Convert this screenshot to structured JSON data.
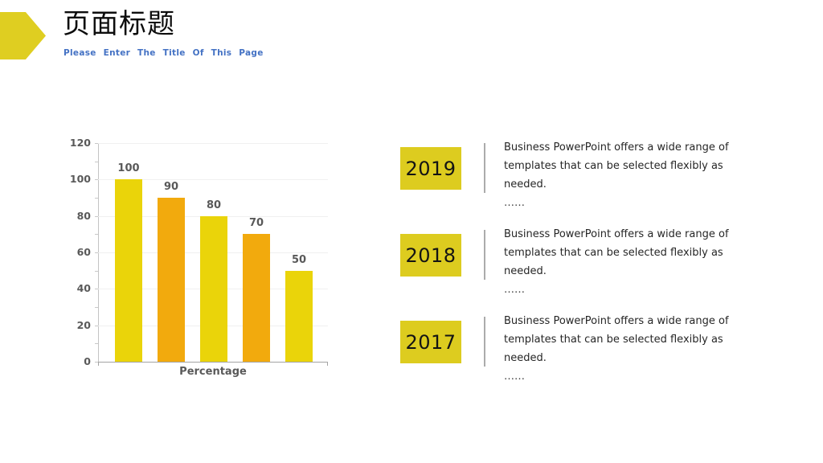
{
  "header": {
    "title": "页面标题",
    "subtitle": "Please Enter The Title Of This Page"
  },
  "colors": {
    "accent_yellow": "#ddcc1f",
    "bar_yellow": "#ead40a",
    "bar_orange": "#f2aa0d",
    "subtitle_blue": "#4472c4",
    "axis_text": "#595959",
    "gridline": "#f0f0f0"
  },
  "chart_data": {
    "type": "bar",
    "title": "",
    "categories": [
      "",
      "",
      "",
      "",
      ""
    ],
    "values": [
      100,
      90,
      80,
      70,
      50
    ],
    "data_labels": [
      "100",
      "90",
      "80",
      "70",
      "50"
    ],
    "bar_colors": [
      "#ead40a",
      "#f2aa0d",
      "#ead40a",
      "#f2aa0d",
      "#ead40a"
    ],
    "xlabel": "Percentage",
    "ylabel": "",
    "ylim": [
      0,
      120
    ],
    "yticks": [
      0,
      20,
      40,
      60,
      80,
      100,
      120
    ],
    "ytick_interval": 20,
    "minor_tick_interval": 10,
    "grid": "horizontal-major",
    "legend": "none"
  },
  "sections": [
    {
      "year": "2019",
      "lines": [
        "Business PowerPoint offers a wide range of",
        "templates that can be selected flexibly as",
        "needed."
      ],
      "ellipsis": "……"
    },
    {
      "year": "2018",
      "lines": [
        "Business PowerPoint offers a wide range of",
        "templates that can be selected flexibly as",
        "needed."
      ],
      "ellipsis": "……"
    },
    {
      "year": "2017",
      "lines": [
        "Business PowerPoint offers a wide range of",
        "templates that can be selected flexibly as",
        "needed."
      ],
      "ellipsis": "……"
    }
  ]
}
